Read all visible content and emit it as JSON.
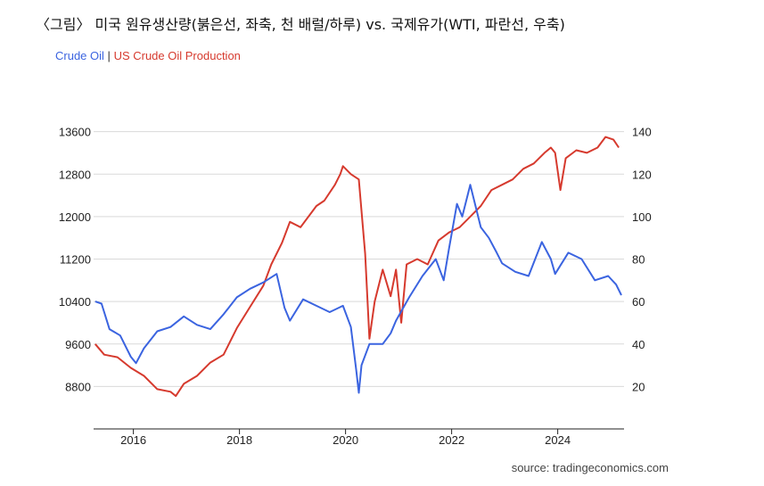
{
  "caption": "〈그림〉 미국 원유생산량(붉은선, 좌축, 천 배럴/하루) vs. 국제유가(WTI, 파란선, 우축)",
  "source": "source: tradingeconomics.com",
  "colors": {
    "oil": "#3b64e0",
    "production": "#d63a2e",
    "grid": "#d9d9d9",
    "axis": "#222222"
  },
  "chart_data": {
    "type": "line",
    "legend": {
      "placement": "top-left",
      "separator": "|"
    },
    "x_ticks": [
      "2016",
      "2018",
      "2020",
      "2022",
      "2024"
    ],
    "x_range": [
      2015.3,
      2025.3
    ],
    "y_left": {
      "range": [
        8000,
        14400
      ],
      "ticks": [
        "13600",
        "12800",
        "12000",
        "11200",
        "10400",
        "9600",
        "8800"
      ]
    },
    "y_right": {
      "range": [
        0,
        160
      ],
      "ticks": [
        "140",
        "120",
        "100",
        "80",
        "60",
        "40",
        "20"
      ]
    },
    "grid": true,
    "series": [
      {
        "name": "US Crude Oil Production",
        "axis": "left",
        "x": [
          2015.33,
          2015.5,
          2015.75,
          2016.0,
          2016.25,
          2016.5,
          2016.75,
          2016.85,
          2017.0,
          2017.25,
          2017.5,
          2017.75,
          2018.0,
          2018.25,
          2018.5,
          2018.65,
          2018.85,
          2019.0,
          2019.2,
          2019.5,
          2019.65,
          2019.85,
          2019.95,
          2020.0,
          2020.15,
          2020.3,
          2020.42,
          2020.5,
          2020.6,
          2020.75,
          2020.9,
          2021.0,
          2021.1,
          2021.2,
          2021.4,
          2021.6,
          2021.8,
          2022.0,
          2022.2,
          2022.4,
          2022.6,
          2022.8,
          2023.0,
          2023.2,
          2023.4,
          2023.6,
          2023.8,
          2023.92,
          2024.0,
          2024.1,
          2024.2,
          2024.4,
          2024.6,
          2024.8,
          2024.95,
          2025.1,
          2025.2
        ],
        "values": [
          9600,
          9400,
          9350,
          9150,
          9000,
          8750,
          8700,
          8620,
          8850,
          9000,
          9250,
          9400,
          9900,
          10300,
          10700,
          11100,
          11500,
          11900,
          11800,
          12200,
          12300,
          12600,
          12800,
          12950,
          12800,
          12700,
          11300,
          9700,
          10400,
          11000,
          10500,
          11000,
          10000,
          11100,
          11200,
          11100,
          11550,
          11700,
          11800,
          12000,
          12200,
          12500,
          12600,
          12700,
          12900,
          13000,
          13200,
          13300,
          13200,
          12500,
          13100,
          13250,
          13200,
          13300,
          13500,
          13450,
          13300
        ]
      },
      {
        "name": "Crude Oil",
        "axis": "right",
        "x": [
          2015.33,
          2015.45,
          2015.6,
          2015.8,
          2016.0,
          2016.1,
          2016.25,
          2016.5,
          2016.75,
          2017.0,
          2017.25,
          2017.5,
          2017.75,
          2018.0,
          2018.25,
          2018.5,
          2018.75,
          2018.9,
          2019.0,
          2019.25,
          2019.5,
          2019.75,
          2020.0,
          2020.15,
          2020.25,
          2020.3,
          2020.35,
          2020.5,
          2020.75,
          2020.9,
          2021.0,
          2021.25,
          2021.5,
          2021.75,
          2021.9,
          2022.0,
          2022.15,
          2022.25,
          2022.4,
          2022.5,
          2022.6,
          2022.75,
          2022.9,
          2023.0,
          2023.25,
          2023.5,
          2023.75,
          2023.92,
          2024.0,
          2024.25,
          2024.5,
          2024.75,
          2025.0,
          2025.15,
          2025.25
        ],
        "values": [
          60,
          59,
          47,
          44,
          34,
          31,
          38,
          46,
          48,
          53,
          49,
          47,
          54,
          62,
          66,
          69,
          73,
          57,
          51,
          61,
          58,
          55,
          58,
          48,
          28,
          17,
          30,
          40,
          40,
          45,
          51,
          62,
          72,
          80,
          70,
          85,
          106,
          100,
          115,
          105,
          95,
          90,
          83,
          78,
          74,
          72,
          88,
          80,
          73,
          83,
          80,
          70,
          72,
          68,
          63
        ]
      }
    ]
  }
}
